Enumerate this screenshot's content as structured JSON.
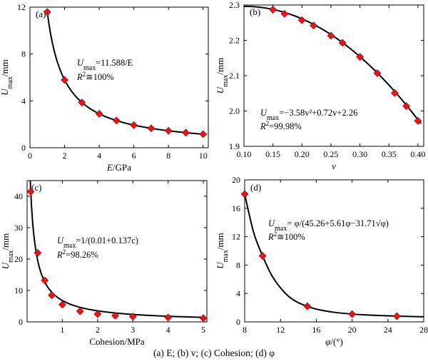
{
  "caption": "(a) E;  (b) v;  (c) Cohesion;  (d) φ",
  "chart_data": [
    {
      "panel": "(a)",
      "type": "scatter",
      "xlabel_main": "E",
      "xlabel_unit": "/GPa",
      "ylabel_main": "U",
      "ylabel_sub": "max",
      "ylabel_unit": "/mm",
      "xlim": [
        0,
        10.3
      ],
      "ylim": [
        0,
        12
      ],
      "xticks": [
        0,
        2,
        4,
        6,
        8,
        10
      ],
      "yticks": [
        0,
        4,
        8,
        12
      ],
      "x": [
        1,
        2,
        3,
        4,
        5,
        6,
        7,
        8,
        9,
        10
      ],
      "y": [
        11.59,
        5.79,
        3.86,
        2.9,
        2.32,
        1.93,
        1.66,
        1.45,
        1.29,
        1.16
      ],
      "fit": {
        "kind": "inverse",
        "a": 11.588,
        "x_range": [
          0.98,
          10.2
        ]
      },
      "equation_prefix": "U",
      "equation_sub": "max",
      "equation_rest": "=11.588/E",
      "r2_prefix": "R",
      "r2_exp": "2",
      "r2_rest": "≅100%",
      "marker_color": "#e8141c"
    },
    {
      "panel": "(b)",
      "type": "scatter",
      "xlabel_main": "v",
      "xlabel_unit": "",
      "ylabel_main": "U",
      "ylabel_sub": "max",
      "ylabel_unit": "/mm",
      "xlim": [
        0.1,
        0.41
      ],
      "ylim": [
        1.9,
        2.3
      ],
      "xticks": [
        0.1,
        0.15,
        0.2,
        0.25,
        0.3,
        0.35,
        0.4
      ],
      "xticklabels": [
        "0.10",
        "0.15",
        "0.20",
        "0.25",
        "0.30",
        "0.35",
        "0.40"
      ],
      "yticks": [
        1.9,
        2.0,
        2.1,
        2.2,
        2.3
      ],
      "yticklabels": [
        "1.9",
        "2.0",
        "2.1",
        "2.2",
        "2.3"
      ],
      "x": [
        0.15,
        0.17,
        0.2,
        0.22,
        0.25,
        0.27,
        0.3,
        0.33,
        0.36,
        0.38,
        0.4
      ],
      "y": [
        2.287,
        2.275,
        2.257,
        2.242,
        2.213,
        2.193,
        2.153,
        2.107,
        2.051,
        2.014,
        1.972
      ],
      "fit": {
        "kind": "quadratic",
        "a": -3.58,
        "b": 0.72,
        "c": 2.26,
        "x_range": [
          0.1,
          0.405
        ]
      },
      "equation_prefix": "U",
      "equation_sub": "max",
      "equation_rest": "=−3.58v²+0.72v+2.26",
      "r2_prefix": "R",
      "r2_exp": "2",
      "r2_rest": "=99.98%",
      "marker_color": "#e8141c"
    },
    {
      "panel": "(c)",
      "type": "scatter",
      "xlabel_main": "Cohesion/MPa",
      "xlabel_unit": "",
      "ylabel_main": "U",
      "ylabel_sub": "max",
      "ylabel_unit": "/mm",
      "xlim": [
        0,
        5.1
      ],
      "ylim": [
        0,
        45
      ],
      "xticks": [
        1,
        2,
        3,
        4,
        5
      ],
      "yticks": [
        0,
        10,
        20,
        30,
        40
      ],
      "x": [
        0.1,
        0.3,
        0.5,
        0.7,
        1.0,
        1.5,
        2.0,
        2.5,
        3.0,
        4.0,
        5.0
      ],
      "y": [
        41.5,
        22.0,
        13.2,
        8.5,
        5.5,
        3.4,
        2.5,
        2.0,
        1.7,
        1.4,
        1.2
      ],
      "fit": {
        "kind": "reciprocal_linear",
        "a": 0.01,
        "b": 0.137,
        "x_range": [
          0.0,
          5.0
        ]
      },
      "equation_prefix": "U",
      "equation_sub": "max",
      "equation_rest": "=1/(0.01+0.137c)",
      "r2_prefix": "R",
      "r2_exp": "2",
      "r2_rest": "=98.26%",
      "marker_color": "#e8141c"
    },
    {
      "panel": "(d)",
      "type": "scatter",
      "xlabel_main": "φ",
      "xlabel_unit": "/(°)",
      "ylabel_main": "U",
      "ylabel_sub": "max",
      "ylabel_unit": "/mm",
      "xlim": [
        8,
        28
      ],
      "ylim": [
        0,
        20
      ],
      "xticks": [
        8,
        12,
        16,
        20,
        24,
        28
      ],
      "yticks": [
        0,
        4,
        8,
        12,
        16,
        20
      ],
      "x": [
        8,
        10,
        15,
        20,
        25
      ],
      "y": [
        18.0,
        9.3,
        2.2,
        1.1,
        0.8
      ],
      "fit": {
        "kind": "points_spline",
        "px": [
          8,
          9,
          10,
          11,
          12,
          13,
          14,
          15,
          16,
          18,
          20,
          22,
          24,
          26,
          28
        ],
        "py": [
          18.0,
          12.6,
          9.3,
          6.6,
          4.8,
          3.5,
          2.7,
          2.2,
          1.8,
          1.35,
          1.1,
          0.95,
          0.85,
          0.78,
          0.72
        ]
      },
      "equation_prefix": "U",
      "equation_sub": "max",
      "equation_rest": "= φ/(45.26+5.61φ−31.71√φ)",
      "r2_prefix": "R",
      "r2_exp": "2",
      "r2_rest": "≅100%",
      "marker_color": "#e8141c"
    }
  ]
}
